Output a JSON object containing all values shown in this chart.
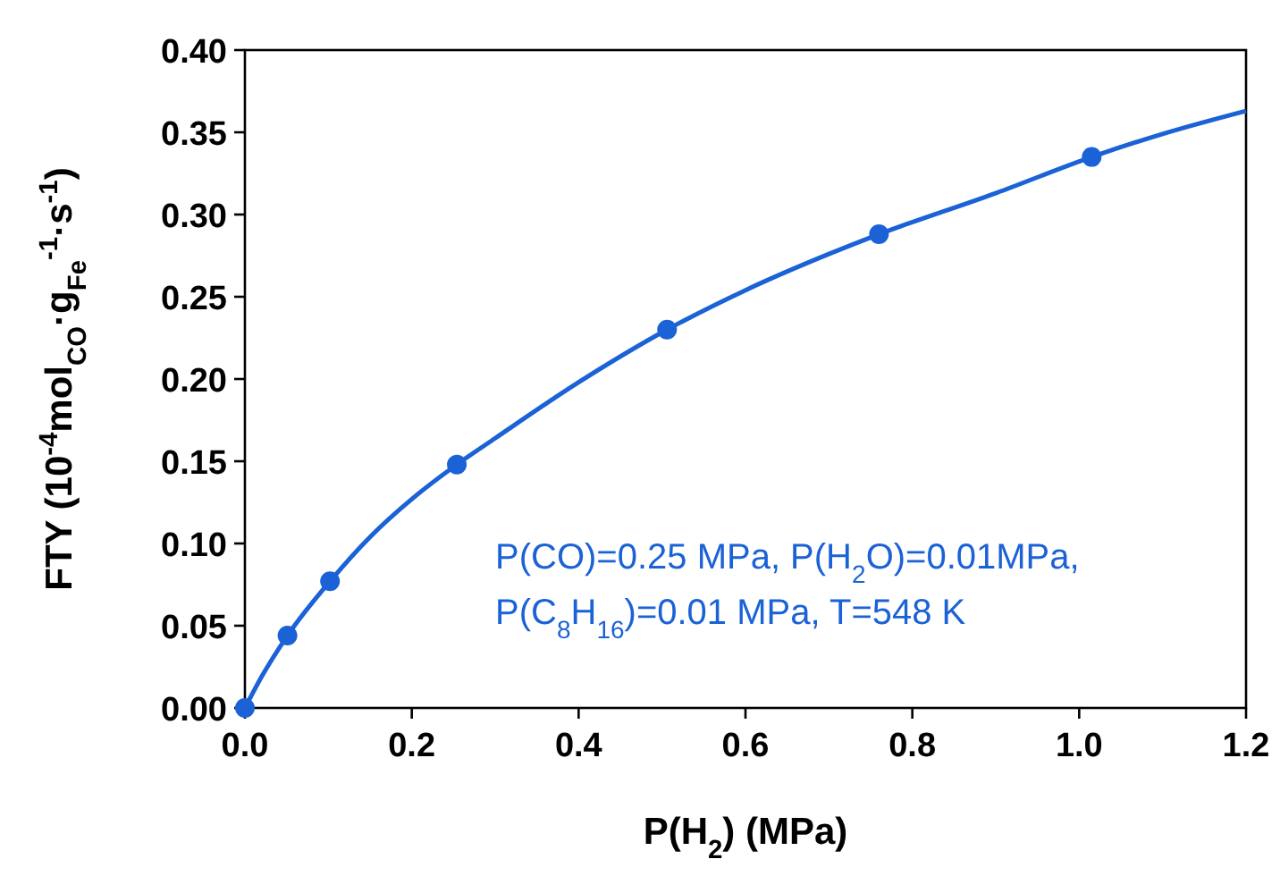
{
  "chart_data": {
    "type": "scatter",
    "xlabel": "P(H$_{2}$) (MPa)",
    "ylabel": "FTY  (10$^{-4}$mol$_{CO}$·g$_{Fe}$$^{-1}$·s$^{-1}$)",
    "xlim": [
      0,
      1.2
    ],
    "xticks": [
      {
        "value": 0,
        "label": "0.0"
      },
      0.2,
      0.4,
      0.6,
      0.8,
      {
        "value": 1,
        "label": "1.0"
      },
      1.2
    ],
    "ylim": [
      0,
      0.4
    ],
    "yticks": [
      {
        "value": 0,
        "label": "0.00"
      },
      0.05,
      {
        "value": 0.1,
        "label": "0.10"
      },
      0.15,
      {
        "value": 0.2,
        "label": "0.20"
      },
      0.25,
      {
        "value": 0.3,
        "label": "0.30"
      },
      0.35,
      {
        "value": 0.4,
        "label": "0.40"
      }
    ],
    "grid": false,
    "marker": "circle",
    "x": [
      0,
      0.051,
      0.102,
      0.254,
      0.506,
      0.76,
      1.015
    ],
    "series": [
      {
        "color": "#1a62d6",
        "values": [
          0,
          0.044,
          0.077,
          0.148,
          0.23,
          0.288,
          0.335
        ]
      },
      {
        "type": "line",
        "color": "#1a62d6",
        "marker": "none",
        "line_style": "solid",
        "x": [
          0,
          0.02,
          0.051,
          0.102,
          0.15,
          0.2,
          0.254,
          0.3,
          0.4,
          0.506,
          0.6,
          0.7,
          0.76,
          0.9,
          1.015,
          1.1,
          1.2
        ],
        "values": [
          0,
          0.019,
          0.044,
          0.077,
          0.104,
          0.127,
          0.148,
          0.164,
          0.198,
          0.23,
          0.254,
          0.276,
          0.288,
          0.313,
          0.335,
          0.349,
          0.363
        ]
      }
    ],
    "annotations": [
      "P(CO)=0.25 MPa, P(H$_{2}$O)=0.01MPa,\nP(C$_{8}$H$_{16}$)=0.01 MPa, T=548 K"
    ]
  }
}
